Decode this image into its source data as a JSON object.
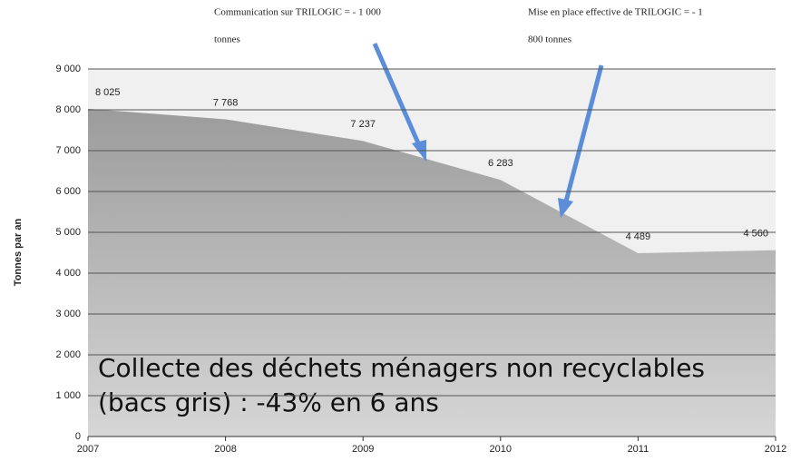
{
  "chart_data": {
    "type": "area",
    "y_label": "Tonnes par an",
    "x": [
      2007,
      2008,
      2009,
      2010,
      2011,
      2012
    ],
    "values": [
      8025,
      7768,
      7237,
      6283,
      4489,
      4560
    ],
    "value_labels": [
      "8 025",
      "7 768",
      "7 237",
      "6 283",
      "4 489",
      "4 560"
    ],
    "color": "#a0a0a0",
    "xlim": [
      2007,
      2012
    ],
    "xticks": [
      2007,
      2008,
      2009,
      2010,
      2011,
      2012
    ],
    "ylim": [
      0,
      9000
    ],
    "yticks": [
      0,
      {
        "value": 1000,
        "label": "1 000"
      },
      {
        "value": 2000,
        "label": "2 000"
      },
      {
        "value": 3000,
        "label": "3 000"
      },
      {
        "value": 4000,
        "label": "4 000"
      },
      {
        "value": 5000,
        "label": "5 000"
      },
      {
        "value": 6000,
        "label": "6 000"
      },
      {
        "value": 7000,
        "label": "7 000"
      },
      {
        "value": 8000,
        "label": "8 000"
      },
      {
        "value": 9000,
        "label": "9 000"
      }
    ],
    "grid": true,
    "annotations": [
      [
        "Communication sur TRILOGIC = - 1 000",
        "tonnes"
      ],
      [
        "Mise en place effective de TRILOGIC = - 1",
        "800 tonnes"
      ]
    ],
    "overlay_text": [
      "Collecte des déchets ménagers non recyclables",
      "(bacs gris) : -43% en 6 ans"
    ]
  }
}
